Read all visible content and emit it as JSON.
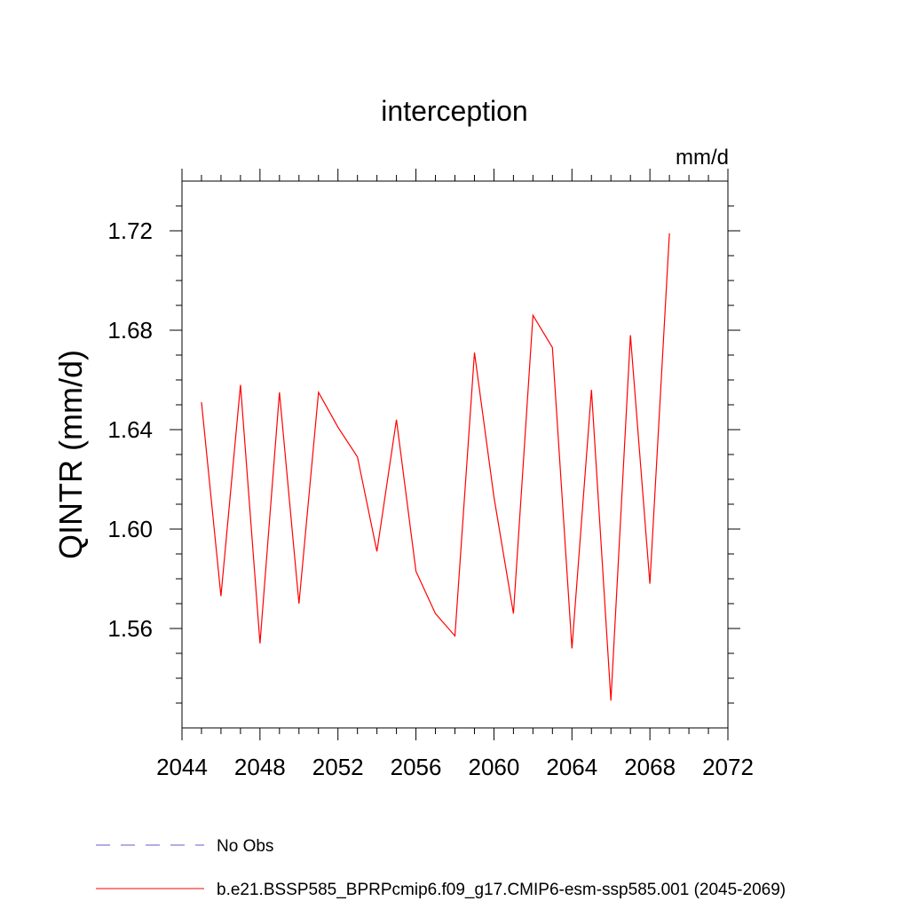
{
  "chart_data": {
    "type": "line",
    "title": "interception",
    "units": "mm/d",
    "ylabel": "QINTR  (mm/d)",
    "xlabel": "",
    "xlim": [
      2044,
      2072
    ],
    "ylim": [
      1.52,
      1.74
    ],
    "x_ticks": [
      2044,
      2048,
      2052,
      2056,
      2060,
      2064,
      2068,
      2072
    ],
    "y_ticks": [
      1.56,
      1.6,
      1.64,
      1.68,
      1.72
    ],
    "x_tick_labels": [
      "2044",
      "2048",
      "2052",
      "2056",
      "2060",
      "2064",
      "2068",
      "2072"
    ],
    "y_tick_labels": [
      "1.56",
      "1.60",
      "1.64",
      "1.68",
      "1.72"
    ],
    "grid": false,
    "legend_position": "bottom",
    "series": [
      {
        "name": "b.e21.BSSP585_BPRPcmip6.f09_g17.CMIP6-esm-ssp585.001 (2045-2069)",
        "color": "#ff0000",
        "line_style": "solid",
        "x": [
          2045,
          2046,
          2047,
          2048,
          2049,
          2050,
          2051,
          2052,
          2053,
          2054,
          2055,
          2056,
          2057,
          2058,
          2059,
          2060,
          2061,
          2062,
          2063,
          2064,
          2065,
          2066,
          2067,
          2068,
          2069
        ],
        "y": [
          1.651,
          1.573,
          1.658,
          1.554,
          1.655,
          1.57,
          1.655,
          1.641,
          1.629,
          1.591,
          1.644,
          1.583,
          1.566,
          1.557,
          1.671,
          1.613,
          1.566,
          1.686,
          1.673,
          1.552,
          1.656,
          1.531,
          1.678,
          1.578,
          1.719
        ]
      }
    ],
    "legend": [
      {
        "label": "No Obs",
        "color": "#6a5acd",
        "line_style": "dashed"
      },
      {
        "label": "b.e21.BSSP585_BPRPcmip6.f09_g17.CMIP6-esm-ssp585.001 (2045-2069)",
        "color": "#ff0000",
        "line_style": "solid"
      }
    ]
  }
}
